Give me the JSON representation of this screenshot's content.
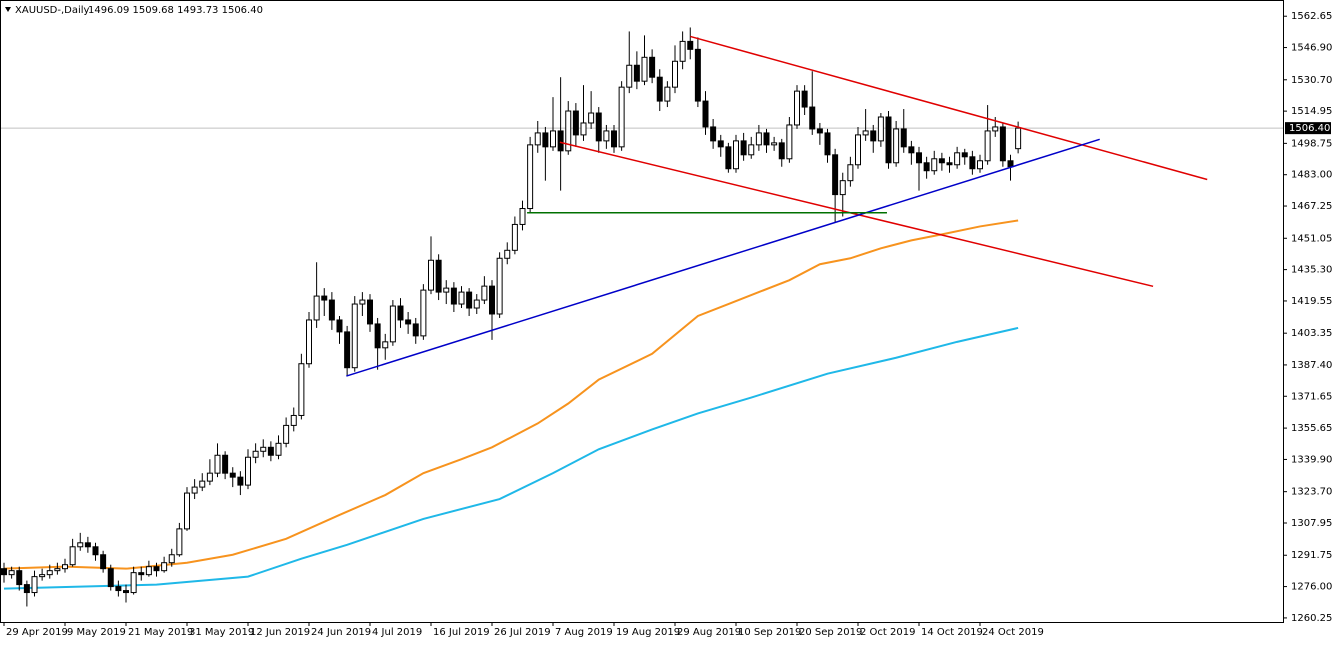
{
  "chart_data": {
    "type": "candlestick",
    "title": "XAUUSD-,Daily",
    "subtitle": "1496.09 1509.68 1493.73 1506.40",
    "last_label": "1506.40",
    "categories": [
      "29 Apr 2019",
      null,
      null,
      null,
      null,
      null,
      null,
      null,
      "9 May 2019",
      null,
      null,
      null,
      null,
      null,
      null,
      null,
      "21 May 2019",
      null,
      null,
      null,
      null,
      null,
      null,
      null,
      "31 May 2019",
      null,
      null,
      null,
      null,
      null,
      null,
      null,
      "12 Jun 2019",
      null,
      null,
      null,
      null,
      null,
      null,
      null,
      "24 Jun 2019",
      null,
      null,
      null,
      null,
      null,
      null,
      null,
      "4 Jul 2019",
      null,
      null,
      null,
      null,
      null,
      null,
      null,
      "16 Jul 2019",
      null,
      null,
      null,
      null,
      null,
      null,
      null,
      "26 Jul 2019",
      null,
      null,
      null,
      null,
      null,
      null,
      null,
      "7 Aug 2019",
      null,
      null,
      null,
      null,
      null,
      null,
      null,
      "19 Aug 2019",
      null,
      null,
      null,
      null,
      null,
      null,
      null,
      "29 Aug 2019",
      null,
      null,
      null,
      null,
      null,
      null,
      null,
      "10 Sep 2019",
      null,
      null,
      null,
      null,
      null,
      null,
      null,
      "20 Sep 2019",
      null,
      null,
      null,
      null,
      null,
      null,
      null,
      "2 Oct 2019",
      null,
      null,
      null,
      null,
      null,
      null,
      null,
      "14 Oct 2019",
      null,
      null,
      null,
      null,
      null,
      null,
      null,
      "24 Oct 2019",
      null,
      null,
      null,
      null,
      null
    ],
    "ohlc": [
      [
        1285,
        1288,
        1278,
        1282
      ],
      [
        1282,
        1286,
        1280,
        1284
      ],
      [
        1284,
        1286,
        1274,
        1277
      ],
      [
        1277,
        1279,
        1266,
        1273
      ],
      [
        1273,
        1284,
        1271,
        1281
      ],
      [
        1281,
        1285,
        1279,
        1282
      ],
      [
        1282,
        1287,
        1280,
        1284
      ],
      [
        1284,
        1288,
        1282,
        1285
      ],
      [
        1285,
        1290,
        1283,
        1287
      ],
      [
        1287,
        1300,
        1286,
        1296
      ],
      [
        1296,
        1303,
        1294,
        1298
      ],
      [
        1298,
        1301,
        1293,
        1296
      ],
      [
        1296,
        1298,
        1289,
        1292
      ],
      [
        1292,
        1294,
        1283,
        1285
      ],
      [
        1285,
        1287,
        1274,
        1276
      ],
      [
        1276,
        1279,
        1271,
        1274
      ],
      [
        1274,
        1277,
        1268,
        1273
      ],
      [
        1273,
        1286,
        1272,
        1283
      ],
      [
        1283,
        1286,
        1279,
        1282
      ],
      [
        1282,
        1289,
        1281,
        1286
      ],
      [
        1286,
        1288,
        1281,
        1284
      ],
      [
        1284,
        1291,
        1283,
        1288
      ],
      [
        1288,
        1295,
        1286,
        1292
      ],
      [
        1292,
        1308,
        1291,
        1305
      ],
      [
        1305,
        1326,
        1304,
        1323
      ],
      [
        1323,
        1330,
        1320,
        1326
      ],
      [
        1326,
        1333,
        1324,
        1329
      ],
      [
        1329,
        1340,
        1327,
        1333
      ],
      [
        1333,
        1348,
        1331,
        1342
      ],
      [
        1342,
        1344,
        1330,
        1333
      ],
      [
        1333,
        1336,
        1326,
        1331
      ],
      [
        1331,
        1334,
        1322,
        1327
      ],
      [
        1327,
        1345,
        1325,
        1341
      ],
      [
        1341,
        1348,
        1338,
        1344
      ],
      [
        1344,
        1350,
        1341,
        1346
      ],
      [
        1346,
        1349,
        1339,
        1342
      ],
      [
        1342,
        1352,
        1340,
        1348
      ],
      [
        1348,
        1361,
        1346,
        1357
      ],
      [
        1357,
        1366,
        1354,
        1362
      ],
      [
        1362,
        1393,
        1360,
        1388
      ],
      [
        1388,
        1414,
        1386,
        1410
      ],
      [
        1410,
        1439,
        1406,
        1422
      ],
      [
        1422,
        1426,
        1412,
        1420
      ],
      [
        1420,
        1424,
        1405,
        1410
      ],
      [
        1410,
        1412,
        1398,
        1404
      ],
      [
        1404,
        1407,
        1382,
        1386
      ],
      [
        1386,
        1422,
        1384,
        1418
      ],
      [
        1418,
        1424,
        1412,
        1420
      ],
      [
        1420,
        1423,
        1404,
        1408
      ],
      [
        1408,
        1411,
        1385,
        1396
      ],
      [
        1396,
        1403,
        1390,
        1399
      ],
      [
        1399,
        1420,
        1397,
        1417
      ],
      [
        1417,
        1421,
        1406,
        1410
      ],
      [
        1410,
        1414,
        1403,
        1408
      ],
      [
        1408,
        1411,
        1398,
        1402
      ],
      [
        1402,
        1428,
        1400,
        1425
      ],
      [
        1425,
        1452,
        1423,
        1440
      ],
      [
        1440,
        1443,
        1420,
        1424
      ],
      [
        1424,
        1430,
        1418,
        1426
      ],
      [
        1426,
        1429,
        1414,
        1418
      ],
      [
        1418,
        1427,
        1416,
        1424
      ],
      [
        1424,
        1426,
        1412,
        1416
      ],
      [
        1416,
        1423,
        1413,
        1420
      ],
      [
        1420,
        1432,
        1418,
        1427
      ],
      [
        1427,
        1430,
        1400,
        1413
      ],
      [
        1413,
        1444,
        1411,
        1441
      ],
      [
        1441,
        1449,
        1438,
        1445
      ],
      [
        1445,
        1462,
        1443,
        1458
      ],
      [
        1458,
        1470,
        1455,
        1466
      ],
      [
        1466,
        1502,
        1464,
        1498
      ],
      [
        1498,
        1510,
        1494,
        1504
      ],
      [
        1504,
        1507,
        1480,
        1497
      ],
      [
        1497,
        1522,
        1495,
        1505
      ],
      [
        1505,
        1532,
        1475,
        1495
      ],
      [
        1495,
        1520,
        1493,
        1515
      ],
      [
        1515,
        1519,
        1497,
        1503
      ],
      [
        1503,
        1528,
        1500,
        1509
      ],
      [
        1509,
        1525,
        1506,
        1514
      ],
      [
        1514,
        1517,
        1494,
        1500
      ],
      [
        1500,
        1508,
        1496,
        1505
      ],
      [
        1505,
        1508,
        1494,
        1497
      ],
      [
        1497,
        1530,
        1495,
        1527
      ],
      [
        1527,
        1555,
        1524,
        1538
      ],
      [
        1538,
        1545,
        1526,
        1530
      ],
      [
        1530,
        1553,
        1528,
        1542
      ],
      [
        1542,
        1546,
        1529,
        1532
      ],
      [
        1532,
        1536,
        1515,
        1520
      ],
      [
        1520,
        1530,
        1517,
        1527
      ],
      [
        1527,
        1548,
        1524,
        1540
      ],
      [
        1540,
        1555,
        1536,
        1550
      ],
      [
        1550,
        1557,
        1541,
        1546
      ],
      [
        1546,
        1552,
        1517,
        1520
      ],
      [
        1520,
        1525,
        1503,
        1507
      ],
      [
        1507,
        1511,
        1496,
        1500
      ],
      [
        1500,
        1503,
        1492,
        1497
      ],
      [
        1497,
        1499,
        1484,
        1486
      ],
      [
        1486,
        1503,
        1484,
        1500
      ],
      [
        1500,
        1504,
        1490,
        1493
      ],
      [
        1493,
        1502,
        1491,
        1498
      ],
      [
        1498,
        1508,
        1495,
        1504
      ],
      [
        1504,
        1506,
        1494,
        1498
      ],
      [
        1498,
        1502,
        1495,
        1499
      ],
      [
        1499,
        1501,
        1487,
        1491
      ],
      [
        1491,
        1512,
        1489,
        1508
      ],
      [
        1508,
        1528,
        1506,
        1525
      ],
      [
        1525,
        1528,
        1513,
        1517
      ],
      [
        1517,
        1535,
        1503,
        1506
      ],
      [
        1506,
        1509,
        1498,
        1504
      ],
      [
        1504,
        1506,
        1489,
        1493
      ],
      [
        1493,
        1496,
        1459,
        1473
      ],
      [
        1473,
        1484,
        1462,
        1480
      ],
      [
        1480,
        1492,
        1477,
        1488
      ],
      [
        1488,
        1507,
        1486,
        1503
      ],
      [
        1503,
        1516,
        1500,
        1505
      ],
      [
        1505,
        1508,
        1494,
        1500
      ],
      [
        1500,
        1514,
        1497,
        1512
      ],
      [
        1512,
        1515,
        1486,
        1489
      ],
      [
        1489,
        1510,
        1487,
        1506
      ],
      [
        1506,
        1516,
        1494,
        1497
      ],
      [
        1497,
        1500,
        1488,
        1494
      ],
      [
        1494,
        1497,
        1475,
        1489
      ],
      [
        1489,
        1492,
        1481,
        1485
      ],
      [
        1485,
        1495,
        1483,
        1491
      ],
      [
        1491,
        1494,
        1485,
        1489
      ],
      [
        1489,
        1492,
        1484,
        1488
      ],
      [
        1488,
        1497,
        1486,
        1494
      ],
      [
        1494,
        1496,
        1488,
        1492
      ],
      [
        1492,
        1495,
        1483,
        1486
      ],
      [
        1486,
        1493,
        1484,
        1490
      ],
      [
        1490,
        1518,
        1488,
        1505
      ],
      [
        1505,
        1512,
        1502,
        1507
      ],
      [
        1507,
        1509,
        1487,
        1490
      ],
      [
        1490,
        1493,
        1480,
        1487
      ],
      [
        1496.09,
        1509.68,
        1493.73,
        1506.4
      ]
    ],
    "series": [
      {
        "color": "#f7931e",
        "x": [
          0,
          8,
          16,
          24,
          30,
          37,
          44,
          50,
          55,
          60,
          64,
          70,
          74,
          78,
          85,
          91,
          95,
          99,
          103,
          107,
          111,
          115,
          119,
          123,
          128,
          133
        ],
        "values": [
          1285,
          1286,
          1285,
          1288,
          1292,
          1300,
          1312,
          1322,
          1333,
          1340,
          1346,
          1358,
          1368,
          1380,
          1393,
          1412,
          1418,
          1424,
          1430,
          1438,
          1441,
          1446,
          1450,
          1453,
          1457,
          1460
        ]
      },
      {
        "color": "#1fb8e8",
        "x": [
          0,
          10,
          20,
          32,
          39,
          45,
          55,
          65,
          72,
          78,
          85,
          91,
          98,
          108,
          117,
          125,
          133
        ],
        "values": [
          1275,
          1276,
          1277,
          1281,
          1290,
          1297,
          1310,
          1320,
          1333,
          1345,
          1355,
          1363,
          1371,
          1383,
          1391,
          1399,
          1406
        ]
      }
    ],
    "drawings": [
      {
        "color": "#e00000",
        "x": [
          90,
          157.8
        ],
        "y": [
          1552.5,
          1480.6
        ]
      },
      {
        "color": "#e00000",
        "x": [
          72.9,
          150.7
        ],
        "y": [
          1499.3,
          1426.9
        ]
      },
      {
        "color": "#0000c8",
        "x": [
          44.9,
          143.7
        ],
        "y": [
          1381.8,
          1500.8
        ]
      },
      {
        "color": "#007000",
        "x": [
          68.6,
          115.8
        ],
        "y": [
          1463.9,
          1463.9
        ]
      }
    ],
    "up_color": "#ffffff",
    "down_color": "#000000",
    "ylim": [
      1258.2,
      1570.8
    ],
    "yticks": [
      1562.65,
      {
        "value": 1546.9,
        "label": "1546.90"
      },
      {
        "value": 1530.7,
        "label": "1530.70"
      },
      1514.95,
      1498.75,
      {
        "value": 1483,
        "label": "1483.00"
      },
      1467.25,
      1451.05,
      {
        "value": 1435.3,
        "label": "1435.30"
      },
      1419.55,
      1403.35,
      {
        "value": 1387.4,
        "label": "1387.40"
      },
      1371.65,
      1355.65,
      {
        "value": 1339.9,
        "label": "1339.90"
      },
      {
        "value": 1323.7,
        "label": "1323.70"
      },
      1307.95,
      1291.75,
      {
        "value": 1276,
        "label": "1276.00"
      },
      1260.25
    ]
  }
}
